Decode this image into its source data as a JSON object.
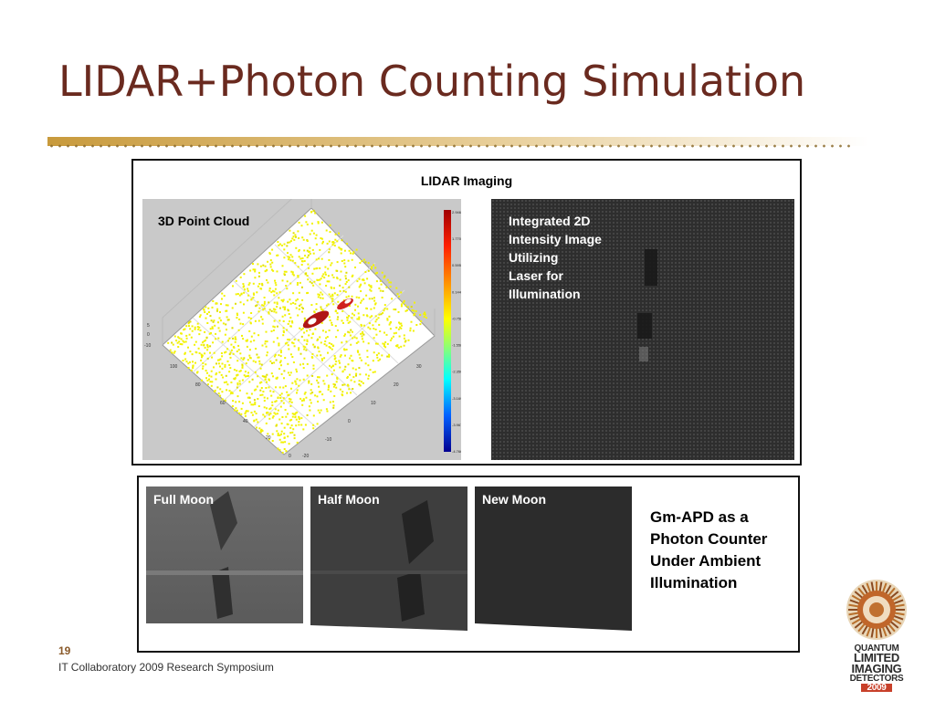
{
  "slide": {
    "title": "LIDAR+Photon Counting Simulation",
    "page_number": "19",
    "footer": "IT Collaboratory 2009 Research Symposium"
  },
  "lidar_panel": {
    "heading": "LIDAR Imaging",
    "point_cloud_label": "3D Point Cloud",
    "intensity_label": "Integrated 2D\nIntensity Image\nUtilizing\nLaser for\nIllumination",
    "colorbar_ticks": [
      "2.946",
      "1.770",
      "0.595",
      "0.144",
      "-0.758",
      "-1.558",
      "-2.350",
      "-3.169",
      "-3.967",
      "-4.766"
    ]
  },
  "photon_panel": {
    "moons": [
      {
        "label": "Full Moon",
        "brightness": "high"
      },
      {
        "label": "Half Moon",
        "brightness": "medium"
      },
      {
        "label": "New Moon",
        "brightness": "low"
      }
    ],
    "description": "Gm-APD as a\nPhoton Counter\nUnder Ambient\nIllumination"
  },
  "logo": {
    "lines": [
      "QUANTUM",
      "LIMITED",
      "IMAGING",
      "DETECTORS"
    ],
    "year": "2009"
  }
}
